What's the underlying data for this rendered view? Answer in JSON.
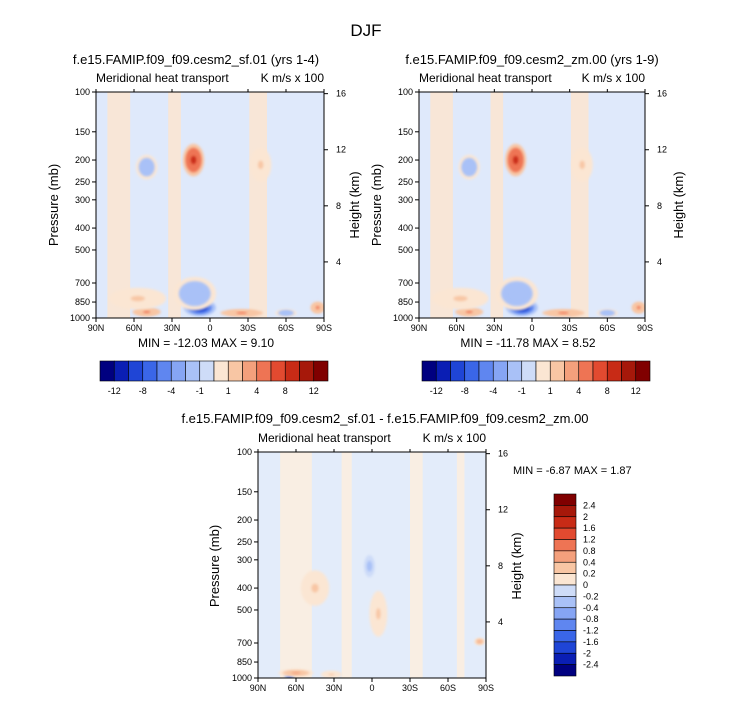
{
  "figure": {
    "title": "DJF",
    "colors": {
      "negative": [
        "#000080",
        "#0a1eb4",
        "#1f45d6",
        "#3a66e8",
        "#5f86f0",
        "#86a5f4",
        "#a9c1f7",
        "#cedcf8"
      ],
      "positive": [
        "#fbe6d3",
        "#f8c6a4",
        "#f4a07c",
        "#ee7454",
        "#e24a30",
        "#c82b16",
        "#a6180a",
        "#800000"
      ]
    },
    "panels": [
      {
        "id": "sf01",
        "title": "f.e15.FAMIP.f09_f09.cesm2_sf.01 (yrs 1-4)",
        "left_label": "Meridional heat transport",
        "right_label": "K m/s x 100",
        "ylabel": "Pressure (mb)",
        "y2label": "Height (km)",
        "stats": "MIN = -12.03  MAX =   9.10"
      },
      {
        "id": "zm00",
        "title": "f.e15.FAMIP.f09_f09.cesm2_zm.00 (yrs 1-9)",
        "left_label": "Meridional heat transport",
        "right_label": "K m/s x 100",
        "ylabel": "Pressure (mb)",
        "y2label": "Height (km)",
        "stats": "MIN = -11.78  MAX =   8.52"
      },
      {
        "id": "diff",
        "title": "f.e15.FAMIP.f09_f09.cesm2_sf.01 - f.e15.FAMIP.f09_f09.cesm2_zm.00",
        "left_label": "Meridional heat transport",
        "right_label": "K m/s x 100",
        "ylabel": "Pressure (mb)",
        "y2label": "Height (km)",
        "stats": "MIN =   -6.87  MAX =   1.87"
      }
    ]
  },
  "chart_data": [
    {
      "type": "heatmap",
      "panel": "sf01",
      "x_ticks": [
        "90N",
        "60N",
        "30N",
        "0",
        "30S",
        "60S",
        "90S"
      ],
      "y_ticks": [
        100,
        150,
        200,
        250,
        300,
        400,
        500,
        700,
        850,
        1000
      ],
      "y2_ticks": [
        16,
        12,
        8,
        4
      ],
      "xlim": [
        90,
        -90
      ],
      "ylim": [
        1000,
        100
      ],
      "features": [
        {
          "lat": 8,
          "p": 900,
          "value": -12,
          "lat_w": 9,
          "p_h": 130
        },
        {
          "lat": 12,
          "p": 780,
          "value": -4,
          "lat_w": 12,
          "p_h": 220
        },
        {
          "lat": 50,
          "p": 940,
          "value": 4,
          "lat_w": 8,
          "p_h": 70
        },
        {
          "lat": 57,
          "p": 820,
          "value": 1,
          "lat_w": 16,
          "p_h": 150
        },
        {
          "lat": -25,
          "p": 950,
          "value": 4,
          "lat_w": 12,
          "p_h": 60
        },
        {
          "lat": -60,
          "p": 950,
          "value": -4,
          "lat_w": 6,
          "p_h": 60
        },
        {
          "lat": -85,
          "p": 900,
          "value": 4,
          "lat_w": 4,
          "p_h": 90
        },
        {
          "lat": 13,
          "p": 200,
          "value": 8,
          "lat_w": 6,
          "p_h": 55
        },
        {
          "lat": 50,
          "p": 215,
          "value": -4,
          "lat_w": 6,
          "p_h": 45
        },
        {
          "lat": -40,
          "p": 210,
          "value": 1,
          "lat_w": 6,
          "p_h": 60
        }
      ],
      "colorbar": {
        "levels": [
          -12,
          -8,
          -4,
          -1,
          1,
          4,
          8,
          12
        ]
      }
    },
    {
      "type": "heatmap",
      "panel": "zm00",
      "x_ticks": [
        "90N",
        "60N",
        "30N",
        "0",
        "30S",
        "60S",
        "90S"
      ],
      "y_ticks": [
        100,
        150,
        200,
        250,
        300,
        400,
        500,
        700,
        850,
        1000
      ],
      "y2_ticks": [
        16,
        12,
        8,
        4
      ],
      "xlim": [
        90,
        -90
      ],
      "ylim": [
        1000,
        100
      ],
      "features": [
        {
          "lat": 8,
          "p": 900,
          "value": -11,
          "lat_w": 9,
          "p_h": 130
        },
        {
          "lat": 12,
          "p": 780,
          "value": -4,
          "lat_w": 12,
          "p_h": 220
        },
        {
          "lat": 50,
          "p": 940,
          "value": 4,
          "lat_w": 8,
          "p_h": 70
        },
        {
          "lat": 57,
          "p": 820,
          "value": 1,
          "lat_w": 16,
          "p_h": 150
        },
        {
          "lat": -25,
          "p": 950,
          "value": 4,
          "lat_w": 12,
          "p_h": 60
        },
        {
          "lat": -60,
          "p": 950,
          "value": -4,
          "lat_w": 6,
          "p_h": 60
        },
        {
          "lat": -85,
          "p": 900,
          "value": 4,
          "lat_w": 4,
          "p_h": 90
        },
        {
          "lat": 13,
          "p": 200,
          "value": 8,
          "lat_w": 6,
          "p_h": 55
        },
        {
          "lat": 50,
          "p": 215,
          "value": -4,
          "lat_w": 6,
          "p_h": 45
        },
        {
          "lat": -40,
          "p": 210,
          "value": 1,
          "lat_w": 6,
          "p_h": 60
        }
      ],
      "colorbar": {
        "levels": [
          -12,
          -8,
          -4,
          -1,
          1,
          4,
          8,
          12
        ]
      }
    },
    {
      "type": "heatmap",
      "panel": "diff",
      "x_ticks": [
        "90N",
        "60N",
        "30N",
        "0",
        "30S",
        "60S",
        "90S"
      ],
      "y_ticks": [
        100,
        150,
        200,
        250,
        300,
        400,
        500,
        700,
        850,
        1000
      ],
      "y2_ticks": [
        16,
        12,
        8,
        4
      ],
      "xlim": [
        90,
        -90
      ],
      "ylim": [
        1000,
        100
      ],
      "features": [
        {
          "lat": 65,
          "p": 975,
          "value": -1.6,
          "lat_w": 3,
          "p_h": 25
        },
        {
          "lat": 60,
          "p": 950,
          "value": 0.4,
          "lat_w": 10,
          "p_h": 60
        },
        {
          "lat": 32,
          "p": 965,
          "value": 0.2,
          "lat_w": 6,
          "p_h": 40
        },
        {
          "lat": 2,
          "p": 320,
          "value": -0.4,
          "lat_w": 3,
          "p_h": 60
        },
        {
          "lat": -5,
          "p": 520,
          "value": 0.2,
          "lat_w": 5,
          "p_h": 200
        },
        {
          "lat": -85,
          "p": 690,
          "value": 0.4,
          "lat_w": 3,
          "p_h": 40
        },
        {
          "lat": 45,
          "p": 400,
          "value": 0.2,
          "lat_w": 8,
          "p_h": 120
        }
      ],
      "colorbar": {
        "levels": [
          2.4,
          2,
          1.6,
          1.2,
          0.8,
          0.4,
          0.2,
          0,
          -0.2,
          -0.4,
          -0.8,
          -1.2,
          -1.6,
          -2,
          -2.4
        ]
      }
    }
  ]
}
